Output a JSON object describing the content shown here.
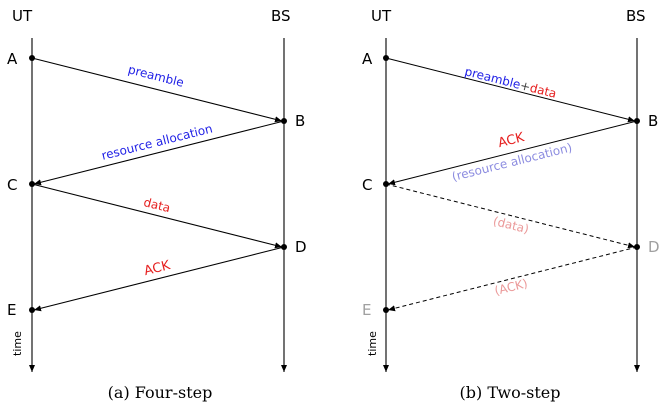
{
  "colors": {
    "black": "#000000",
    "blue": "#1f1fe6",
    "red": "#e62020",
    "light_blue": "#8c8ce0",
    "light_red": "#eb9a9a",
    "gray": "#a0a0a0"
  },
  "panel_a": {
    "ut_label": "UT",
    "bs_label": "BS",
    "time_label": "time",
    "points": {
      "a": "A",
      "b": "B",
      "c": "C",
      "d": "D",
      "e": "E"
    },
    "messages": {
      "preamble": "preamble",
      "resource_allocation": "resource allocation",
      "data": "data",
      "ack": "ACK"
    },
    "caption": "(a) Four-step"
  },
  "panel_b": {
    "ut_label": "UT",
    "bs_label": "BS",
    "time_label": "time",
    "points": {
      "a": "A",
      "b": "B",
      "c": "C",
      "d": "D",
      "e": "E"
    },
    "messages": {
      "preamble": "preamble",
      "plus": "+",
      "data": "data",
      "ack": "ACK",
      "resource_allocation": "(resource allocation)",
      "data_optional": "(data)",
      "ack_optional": "(ACK)"
    },
    "caption": "(b) Two-step"
  }
}
